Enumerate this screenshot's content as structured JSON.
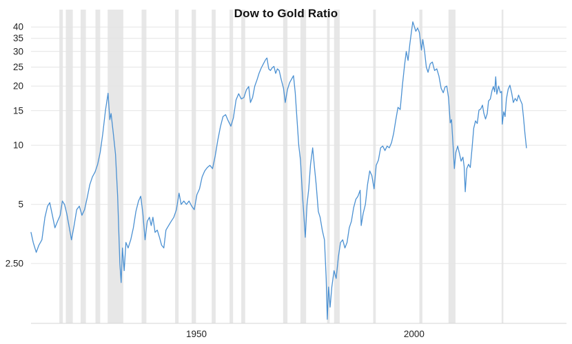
{
  "chart_data": {
    "type": "line",
    "title": "Dow to Gold Ratio",
    "xlabel": "",
    "ylabel": "",
    "y_scale": "log",
    "grid": "horizontal",
    "legend": "none",
    "xlim": [
      1912,
      2035
    ],
    "ylim": [
      1.24,
      49
    ],
    "line_color": "#4a90d2",
    "grid_color": "#e4e4e4",
    "axis_line_color": "#d6d6d6",
    "tick_label_color": "#222222",
    "recession_band_color": "#e7e7e7",
    "x_ticks": [
      {
        "value": 1950,
        "label": "1950"
      },
      {
        "value": 2000,
        "label": "2000"
      }
    ],
    "y_ticks": [
      {
        "value": 2.5,
        "label": "2.50"
      },
      {
        "value": 5,
        "label": "5"
      },
      {
        "value": 10,
        "label": "10"
      },
      {
        "value": 15,
        "label": "15"
      },
      {
        "value": 20,
        "label": "20"
      },
      {
        "value": 25,
        "label": "25"
      },
      {
        "value": 30,
        "label": "30"
      },
      {
        "value": 35,
        "label": "35"
      },
      {
        "value": 40,
        "label": "40"
      }
    ],
    "recessions": [
      [
        1918.5,
        1919.3
      ],
      [
        1920.0,
        1921.6
      ],
      [
        1923.4,
        1924.6
      ],
      [
        1926.8,
        1927.9
      ],
      [
        1929.6,
        1933.2
      ],
      [
        1937.4,
        1938.5
      ],
      [
        1945.1,
        1945.9
      ],
      [
        1948.9,
        1949.9
      ],
      [
        1953.5,
        1954.4
      ],
      [
        1957.6,
        1958.4
      ],
      [
        1960.3,
        1961.2
      ],
      [
        1969.9,
        1970.9
      ],
      [
        1973.9,
        1975.2
      ],
      [
        1980.0,
        1980.6
      ],
      [
        1981.6,
        1982.9
      ],
      [
        1990.6,
        1991.2
      ],
      [
        2001.2,
        2001.9
      ],
      [
        2007.9,
        2009.5
      ],
      [
        2020.1,
        2020.5
      ]
    ],
    "series": [
      {
        "name": "Dow to Gold Ratio",
        "points": [
          [
            1912.0,
            3.6
          ],
          [
            1912.5,
            3.2
          ],
          [
            1913.2,
            2.85
          ],
          [
            1913.8,
            3.1
          ],
          [
            1914.5,
            3.3
          ],
          [
            1915.2,
            4.3
          ],
          [
            1915.8,
            4.9
          ],
          [
            1916.3,
            5.1
          ],
          [
            1916.9,
            4.4
          ],
          [
            1917.5,
            3.8
          ],
          [
            1918.1,
            4.1
          ],
          [
            1918.7,
            4.4
          ],
          [
            1919.2,
            5.2
          ],
          [
            1919.7,
            5.0
          ],
          [
            1920.2,
            4.5
          ],
          [
            1920.8,
            3.8
          ],
          [
            1921.3,
            3.3
          ],
          [
            1921.9,
            3.9
          ],
          [
            1922.5,
            4.7
          ],
          [
            1923.1,
            4.9
          ],
          [
            1923.7,
            4.4
          ],
          [
            1924.3,
            4.7
          ],
          [
            1924.9,
            5.4
          ],
          [
            1925.5,
            6.3
          ],
          [
            1926.1,
            6.9
          ],
          [
            1926.7,
            7.3
          ],
          [
            1927.3,
            8.0
          ],
          [
            1927.9,
            9.2
          ],
          [
            1928.5,
            11.5
          ],
          [
            1929.1,
            15.0
          ],
          [
            1929.7,
            18.4
          ],
          [
            1930.1,
            13.5
          ],
          [
            1930.4,
            14.5
          ],
          [
            1930.9,
            11.5
          ],
          [
            1931.4,
            9.0
          ],
          [
            1931.9,
            5.5
          ],
          [
            1932.4,
            2.5
          ],
          [
            1932.7,
            2.0
          ],
          [
            1933.0,
            3.0
          ],
          [
            1933.4,
            2.3
          ],
          [
            1933.8,
            3.2
          ],
          [
            1934.3,
            3.0
          ],
          [
            1934.9,
            3.3
          ],
          [
            1935.5,
            3.8
          ],
          [
            1936.1,
            4.6
          ],
          [
            1936.7,
            5.2
          ],
          [
            1937.2,
            5.5
          ],
          [
            1937.7,
            4.5
          ],
          [
            1938.2,
            3.3
          ],
          [
            1938.7,
            4.1
          ],
          [
            1939.2,
            4.3
          ],
          [
            1939.6,
            3.9
          ],
          [
            1940.0,
            4.3
          ],
          [
            1940.5,
            3.6
          ],
          [
            1941.0,
            3.7
          ],
          [
            1941.5,
            3.4
          ],
          [
            1942.0,
            3.1
          ],
          [
            1942.5,
            3.0
          ],
          [
            1943.0,
            3.7
          ],
          [
            1943.6,
            3.9
          ],
          [
            1944.2,
            4.1
          ],
          [
            1944.8,
            4.3
          ],
          [
            1945.4,
            4.7
          ],
          [
            1946.0,
            5.7
          ],
          [
            1946.5,
            5.0
          ],
          [
            1947.1,
            5.2
          ],
          [
            1947.7,
            5.0
          ],
          [
            1948.3,
            5.2
          ],
          [
            1948.9,
            4.9
          ],
          [
            1949.5,
            4.7
          ],
          [
            1950.1,
            5.6
          ],
          [
            1950.7,
            6.0
          ],
          [
            1951.3,
            6.9
          ],
          [
            1951.9,
            7.4
          ],
          [
            1952.5,
            7.7
          ],
          [
            1953.1,
            7.9
          ],
          [
            1953.7,
            7.6
          ],
          [
            1954.3,
            8.8
          ],
          [
            1954.9,
            10.6
          ],
          [
            1955.5,
            12.4
          ],
          [
            1956.1,
            14.0
          ],
          [
            1956.7,
            14.3
          ],
          [
            1957.3,
            13.3
          ],
          [
            1957.9,
            12.5
          ],
          [
            1958.5,
            13.8
          ],
          [
            1959.1,
            17.0
          ],
          [
            1959.7,
            18.3
          ],
          [
            1960.3,
            17.2
          ],
          [
            1960.9,
            17.5
          ],
          [
            1961.5,
            19.2
          ],
          [
            1962.0,
            19.9
          ],
          [
            1962.4,
            16.5
          ],
          [
            1962.9,
            17.5
          ],
          [
            1963.4,
            20.0
          ],
          [
            1963.9,
            21.5
          ],
          [
            1964.4,
            23.3
          ],
          [
            1964.9,
            24.8
          ],
          [
            1965.4,
            26.0
          ],
          [
            1965.9,
            27.3
          ],
          [
            1966.2,
            27.8
          ],
          [
            1966.6,
            24.5
          ],
          [
            1967.0,
            24.0
          ],
          [
            1967.4,
            24.8
          ],
          [
            1967.8,
            25.2
          ],
          [
            1968.2,
            23.2
          ],
          [
            1968.6,
            24.5
          ],
          [
            1969.0,
            24.0
          ],
          [
            1969.5,
            21.5
          ],
          [
            1970.0,
            19.5
          ],
          [
            1970.4,
            16.5
          ],
          [
            1970.9,
            19.2
          ],
          [
            1971.4,
            20.8
          ],
          [
            1971.9,
            21.8
          ],
          [
            1972.3,
            22.6
          ],
          [
            1972.7,
            18.5
          ],
          [
            1973.1,
            13.5
          ],
          [
            1973.5,
            10.0
          ],
          [
            1973.9,
            8.4
          ],
          [
            1974.3,
            5.8
          ],
          [
            1974.7,
            4.3
          ],
          [
            1975.0,
            3.4
          ],
          [
            1975.4,
            5.0
          ],
          [
            1975.8,
            6.0
          ],
          [
            1976.2,
            8.0
          ],
          [
            1976.7,
            9.7
          ],
          [
            1977.1,
            7.8
          ],
          [
            1977.5,
            6.3
          ],
          [
            1978.0,
            4.6
          ],
          [
            1978.4,
            4.3
          ],
          [
            1978.9,
            3.7
          ],
          [
            1979.4,
            3.3
          ],
          [
            1979.8,
            2.1
          ],
          [
            1980.05,
            1.3
          ],
          [
            1980.35,
            1.9
          ],
          [
            1980.7,
            1.5
          ],
          [
            1981.1,
            1.9
          ],
          [
            1981.6,
            2.3
          ],
          [
            1982.1,
            2.1
          ],
          [
            1982.6,
            2.7
          ],
          [
            1983.1,
            3.2
          ],
          [
            1983.6,
            3.3
          ],
          [
            1984.1,
            3.0
          ],
          [
            1984.6,
            3.2
          ],
          [
            1985.1,
            3.8
          ],
          [
            1985.6,
            4.1
          ],
          [
            1986.1,
            4.8
          ],
          [
            1986.6,
            5.3
          ],
          [
            1987.1,
            5.5
          ],
          [
            1987.6,
            5.9
          ],
          [
            1987.85,
            3.9
          ],
          [
            1988.3,
            4.5
          ],
          [
            1988.8,
            5.0
          ],
          [
            1989.3,
            6.3
          ],
          [
            1989.8,
            7.4
          ],
          [
            1990.3,
            7.0
          ],
          [
            1990.8,
            6.0
          ],
          [
            1991.3,
            7.9
          ],
          [
            1991.8,
            8.4
          ],
          [
            1992.3,
            9.7
          ],
          [
            1992.8,
            9.9
          ],
          [
            1993.3,
            9.4
          ],
          [
            1993.8,
            9.9
          ],
          [
            1994.3,
            9.7
          ],
          [
            1994.8,
            10.3
          ],
          [
            1995.3,
            11.5
          ],
          [
            1995.8,
            13.5
          ],
          [
            1996.3,
            15.6
          ],
          [
            1996.8,
            15.2
          ],
          [
            1997.3,
            20.0
          ],
          [
            1997.8,
            25.5
          ],
          [
            1998.2,
            30.0
          ],
          [
            1998.6,
            27.0
          ],
          [
            1999.0,
            32.5
          ],
          [
            1999.4,
            38.0
          ],
          [
            1999.7,
            42.5
          ],
          [
            2000.0,
            40.5
          ],
          [
            2000.4,
            38.0
          ],
          [
            2000.8,
            39.5
          ],
          [
            2001.2,
            37.5
          ],
          [
            2001.7,
            30.5
          ],
          [
            2002.0,
            34.5
          ],
          [
            2002.4,
            30.0
          ],
          [
            2002.8,
            25.0
          ],
          [
            2003.2,
            23.5
          ],
          [
            2003.7,
            26.0
          ],
          [
            2004.2,
            26.5
          ],
          [
            2004.7,
            24.0
          ],
          [
            2005.2,
            24.5
          ],
          [
            2005.7,
            22.5
          ],
          [
            2006.2,
            19.5
          ],
          [
            2006.7,
            18.5
          ],
          [
            2007.1,
            19.8
          ],
          [
            2007.5,
            20.0
          ],
          [
            2007.9,
            17.5
          ],
          [
            2008.3,
            13.0
          ],
          [
            2008.6,
            13.5
          ],
          [
            2009.0,
            9.5
          ],
          [
            2009.25,
            7.6
          ],
          [
            2009.6,
            9.2
          ],
          [
            2010.0,
            9.9
          ],
          [
            2010.4,
            9.1
          ],
          [
            2010.8,
            8.3
          ],
          [
            2011.2,
            8.7
          ],
          [
            2011.5,
            7.8
          ],
          [
            2011.75,
            5.8
          ],
          [
            2012.1,
            7.6
          ],
          [
            2012.5,
            8.0
          ],
          [
            2012.9,
            7.7
          ],
          [
            2013.3,
            9.6
          ],
          [
            2013.7,
            12.2
          ],
          [
            2014.1,
            13.3
          ],
          [
            2014.5,
            12.9
          ],
          [
            2014.9,
            15.1
          ],
          [
            2015.3,
            15.3
          ],
          [
            2015.7,
            16.0
          ],
          [
            2016.0,
            14.6
          ],
          [
            2016.4,
            13.6
          ],
          [
            2016.8,
            14.5
          ],
          [
            2017.1,
            16.8
          ],
          [
            2017.5,
            17.2
          ],
          [
            2017.9,
            19.0
          ],
          [
            2018.2,
            19.9
          ],
          [
            2018.5,
            18.7
          ],
          [
            2018.75,
            22.3
          ],
          [
            2019.0,
            18.2
          ],
          [
            2019.4,
            20.0
          ],
          [
            2019.8,
            18.5
          ],
          [
            2020.1,
            18.8
          ],
          [
            2020.25,
            12.8
          ],
          [
            2020.6,
            14.8
          ],
          [
            2020.9,
            14.0
          ],
          [
            2021.2,
            17.2
          ],
          [
            2021.6,
            19.3
          ],
          [
            2022.0,
            20.2
          ],
          [
            2022.4,
            18.5
          ],
          [
            2022.8,
            16.5
          ],
          [
            2023.2,
            17.3
          ],
          [
            2023.6,
            16.8
          ],
          [
            2024.0,
            18.0
          ],
          [
            2024.4,
            17.0
          ],
          [
            2024.8,
            16.2
          ],
          [
            2025.1,
            14.0
          ],
          [
            2025.45,
            11.5
          ],
          [
            2025.8,
            9.7
          ]
        ]
      }
    ]
  }
}
